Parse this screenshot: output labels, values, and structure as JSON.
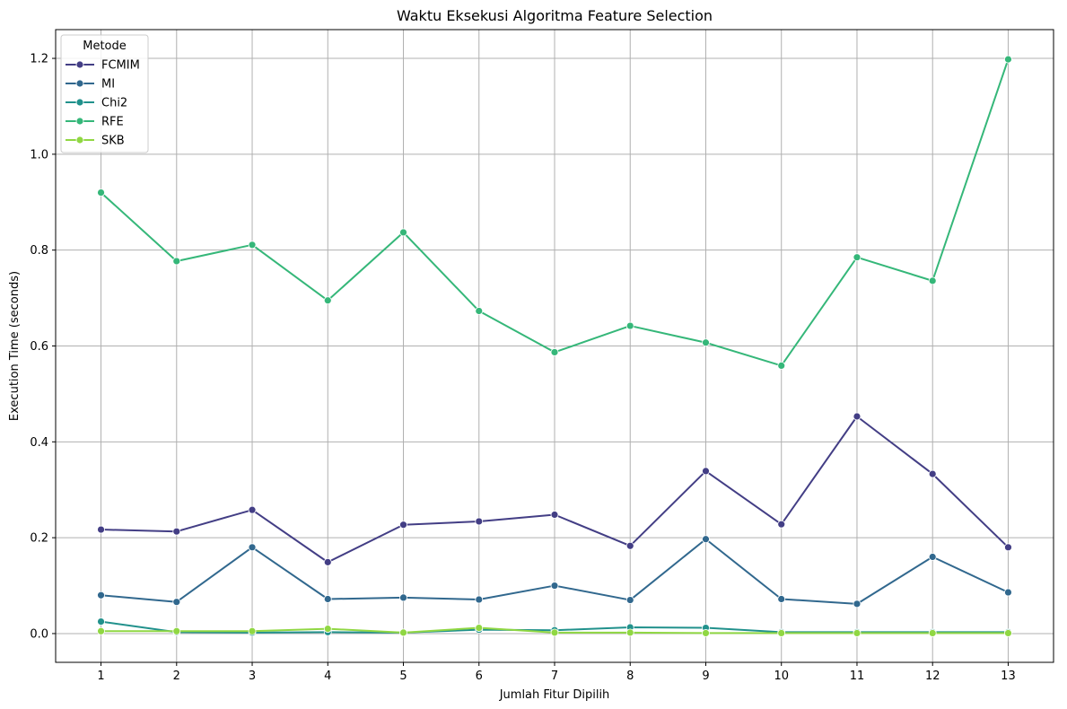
{
  "chart_data": {
    "type": "line",
    "title": "Waktu Eksekusi Algoritma Feature Selection",
    "xlabel": "Jumlah Fitur Dipilih",
    "ylabel": "Execution Time (seconds)",
    "x": [
      1,
      2,
      3,
      4,
      5,
      6,
      7,
      8,
      9,
      10,
      11,
      12,
      13
    ],
    "x_tick_labels": [
      "1",
      "2",
      "3",
      "4",
      "5",
      "6",
      "7",
      "8",
      "9",
      "10",
      "11",
      "12",
      "13"
    ],
    "y_ticks": [
      0.0,
      0.2,
      0.4,
      0.6,
      0.8,
      1.0,
      1.2
    ],
    "y_tick_labels": [
      "0.0",
      "0.2",
      "0.4",
      "0.6",
      "0.8",
      "1.0",
      "1.2"
    ],
    "xlim": [
      0.4,
      13.6
    ],
    "ylim": [
      -0.06,
      1.26
    ],
    "grid": true,
    "legend": {
      "title": "Metode",
      "placement": "top-left"
    },
    "series": [
      {
        "name": "FCMIM",
        "color": "#433e85",
        "values": [
          0.217,
          0.213,
          0.258,
          0.149,
          0.227,
          0.234,
          0.248,
          0.183,
          0.339,
          0.228,
          0.453,
          0.333,
          0.18
        ]
      },
      {
        "name": "MI",
        "color": "#31688e",
        "values": [
          0.08,
          0.066,
          0.18,
          0.072,
          0.075,
          0.071,
          0.1,
          0.07,
          0.197,
          0.072,
          0.062,
          0.16,
          0.086
        ]
      },
      {
        "name": "Chi2",
        "color": "#21918c",
        "values": [
          0.025,
          0.003,
          0.002,
          0.003,
          0.002,
          0.008,
          0.007,
          0.013,
          0.012,
          0.003,
          0.003,
          0.003,
          0.003
        ]
      },
      {
        "name": "RFE",
        "color": "#35b779",
        "values": [
          0.92,
          0.777,
          0.811,
          0.695,
          0.837,
          0.673,
          0.587,
          0.642,
          0.607,
          0.559,
          0.785,
          0.736,
          1.198
        ]
      },
      {
        "name": "SKB",
        "color": "#90d743",
        "values": [
          0.005,
          0.005,
          0.005,
          0.01,
          0.002,
          0.012,
          0.002,
          0.002,
          0.001,
          0.001,
          0.001,
          0.001,
          0.001
        ]
      }
    ]
  }
}
